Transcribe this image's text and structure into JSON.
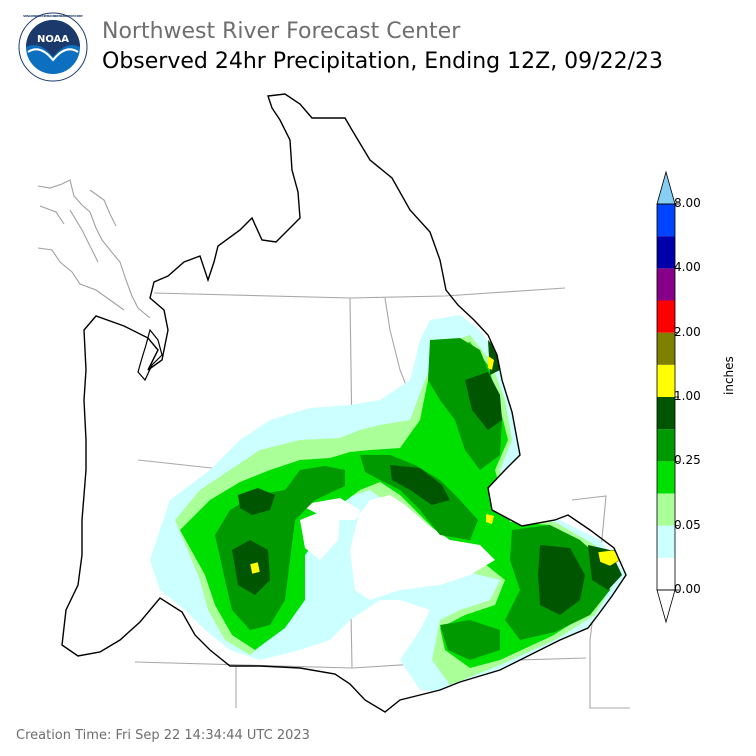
{
  "header": {
    "agency": "Northwest River Forecast Center",
    "title": "Observed 24hr Precipitation, Ending 12Z, 09/22/23"
  },
  "logo": {
    "text": "NOAA",
    "ring_text": "NATIONAL OCEANIC AND ATMOSPHERIC ADMINISTRATION · U.S. DEPARTMENT OF COMMERCE"
  },
  "legend": {
    "units": "inches",
    "labels": [
      "0.00",
      "0.05",
      "0.25",
      "1.00",
      "2.00",
      "4.00",
      "8.00"
    ],
    "colors": [
      "#ffffff",
      "#ccffff",
      "#aaff99",
      "#00e000",
      "#009900",
      "#005500",
      "#ffff00",
      "#808000",
      "#ff0000",
      "#880088",
      "#0000aa",
      "#0044ff",
      "#7fd0f5"
    ],
    "over_color": "#87cef5",
    "under_color": "#ffffff"
  },
  "footer": {
    "creation_time": "Creation Time: Fri Sep 22 14:34:44 UTC 2023"
  }
}
